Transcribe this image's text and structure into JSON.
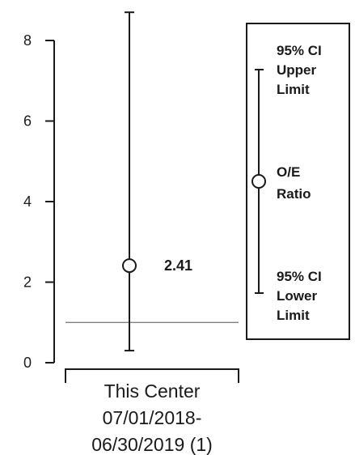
{
  "chart_data": {
    "type": "scatter",
    "categories": [
      "This Center 07/01/2018-06/30/2019 (1)"
    ],
    "category_label_lines": [
      "This Center",
      "07/01/2018-",
      "06/30/2019 (1)"
    ],
    "points": [
      {
        "category": "This Center 07/01/2018-06/30/2019 (1)",
        "value": 2.41,
        "lower": 0.3,
        "upper": 8.7,
        "value_label": "2.41"
      }
    ],
    "reference_line": 1,
    "yticks": [
      0,
      2,
      4,
      6,
      8
    ],
    "ytick_labels": [
      "0",
      "2",
      "4",
      "6",
      "8"
    ],
    "ylim": [
      0,
      8.7
    ],
    "legend": {
      "placement": "right",
      "upper": [
        "95% CI",
        "Upper",
        "Limit"
      ],
      "ratio": [
        "O/E",
        "Ratio"
      ],
      "lower": [
        "95% CI",
        "Lower",
        "Limit"
      ]
    },
    "title": "",
    "xlabel": "",
    "ylabel": "",
    "grid": false
  }
}
